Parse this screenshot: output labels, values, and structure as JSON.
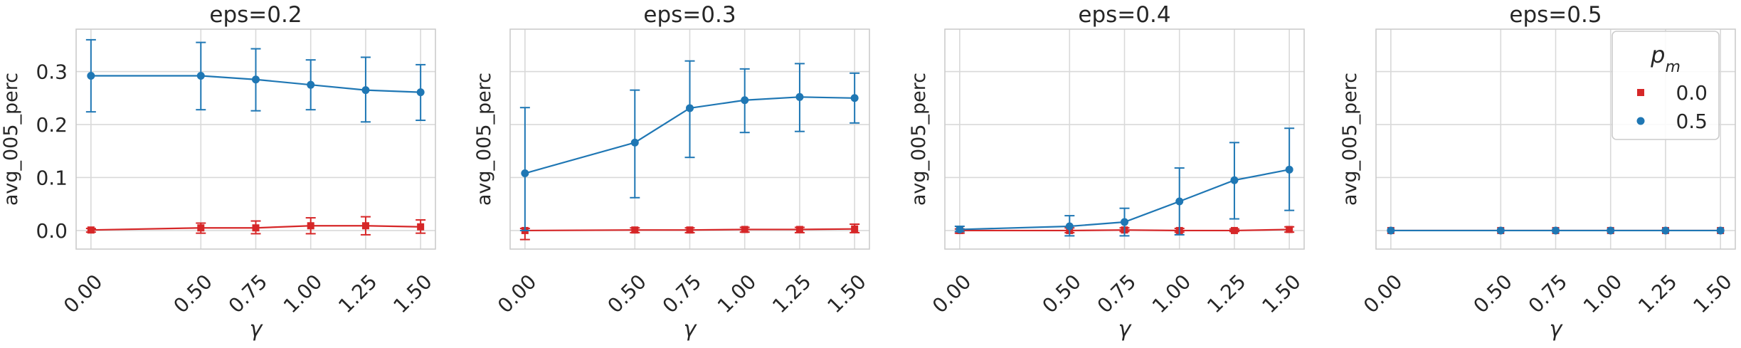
{
  "chart_data": [
    {
      "type": "line",
      "title": "eps=0.2",
      "xlabel": "γ",
      "ylabel": "avg_005_perc",
      "x": [
        0.0,
        0.5,
        0.75,
        1.0,
        1.25,
        1.5
      ],
      "xtick_labels": [
        "0.00",
        "0.50",
        "0.75",
        "1.00",
        "1.25",
        "1.50"
      ],
      "ylim": [
        -0.035,
        0.38
      ],
      "yticks": [
        0.0,
        0.1,
        0.2,
        0.3
      ],
      "ytick_labels": [
        "0.0",
        "0.1",
        "0.2",
        "0.3"
      ],
      "grid": true,
      "series": [
        {
          "name": "0.0",
          "marker": "square",
          "color": "#d62728",
          "values": [
            0.001,
            0.005,
            0.005,
            0.009,
            0.009,
            0.007
          ],
          "err_low": [
            -0.003,
            -0.005,
            -0.006,
            -0.006,
            -0.008,
            -0.005
          ],
          "err_high": [
            0.004,
            0.014,
            0.018,
            0.024,
            0.026,
            0.02
          ]
        },
        {
          "name": "0.5",
          "marker": "circle",
          "color": "#1f77b4",
          "values": [
            0.292,
            0.292,
            0.285,
            0.275,
            0.265,
            0.261
          ],
          "err_low": [
            0.224,
            0.228,
            0.226,
            0.228,
            0.205,
            0.208
          ],
          "err_high": [
            0.36,
            0.355,
            0.343,
            0.322,
            0.327,
            0.313
          ]
        }
      ]
    },
    {
      "type": "line",
      "title": "eps=0.3",
      "xlabel": "γ",
      "ylabel": "avg_005_perc",
      "x": [
        0.0,
        0.5,
        0.75,
        1.0,
        1.25,
        1.5
      ],
      "xtick_labels": [
        "0.00",
        "0.50",
        "0.75",
        "1.00",
        "1.25",
        "1.50"
      ],
      "ylim": [
        -0.035,
        0.38
      ],
      "yticks": [
        0.0,
        0.1,
        0.2,
        0.3
      ],
      "ytick_labels": [
        "",
        "",
        "",
        ""
      ],
      "grid": true,
      "series": [
        {
          "name": "0.0",
          "marker": "square",
          "color": "#d62728",
          "values": [
            0.0,
            0.001,
            0.001,
            0.002,
            0.002,
            0.003
          ],
          "err_low": [
            -0.017,
            -0.004,
            -0.004,
            -0.003,
            -0.004,
            -0.004
          ],
          "err_high": [
            0.004,
            0.005,
            0.005,
            0.006,
            0.006,
            0.012
          ]
        },
        {
          "name": "0.5",
          "marker": "circle",
          "color": "#1f77b4",
          "values": [
            0.108,
            0.166,
            0.231,
            0.246,
            0.252,
            0.25
          ],
          "err_low": [
            0.0,
            0.062,
            0.138,
            0.185,
            0.187,
            0.203
          ],
          "err_high": [
            0.232,
            0.265,
            0.32,
            0.305,
            0.315,
            0.297
          ]
        }
      ]
    },
    {
      "type": "line",
      "title": "eps=0.4",
      "xlabel": "γ",
      "ylabel": "avg_005_perc",
      "x": [
        0.0,
        0.5,
        0.75,
        1.0,
        1.25,
        1.5
      ],
      "xtick_labels": [
        "0.00",
        "0.50",
        "0.75",
        "1.00",
        "1.25",
        "1.50"
      ],
      "ylim": [
        -0.035,
        0.38
      ],
      "yticks": [
        0.0,
        0.1,
        0.2,
        0.3
      ],
      "ytick_labels": [
        "",
        "",
        "",
        ""
      ],
      "grid": true,
      "series": [
        {
          "name": "0.0",
          "marker": "square",
          "color": "#d62728",
          "values": [
            0.0,
            0.0,
            0.001,
            0.0,
            0.0,
            0.002
          ],
          "err_low": [
            -0.005,
            -0.004,
            -0.002,
            -0.003,
            -0.002,
            -0.003
          ],
          "err_high": [
            0.003,
            0.005,
            0.005,
            0.004,
            0.003,
            0.007
          ]
        },
        {
          "name": "0.5",
          "marker": "circle",
          "color": "#1f77b4",
          "values": [
            0.002,
            0.008,
            0.016,
            0.055,
            0.095,
            0.115
          ],
          "err_low": [
            -0.002,
            -0.01,
            -0.01,
            -0.008,
            0.022,
            0.038
          ],
          "err_high": [
            0.008,
            0.028,
            0.042,
            0.118,
            0.166,
            0.193
          ]
        }
      ]
    },
    {
      "type": "line",
      "title": "eps=0.5",
      "xlabel": "γ",
      "ylabel": "avg_005_perc",
      "x": [
        0.0,
        0.5,
        0.75,
        1.0,
        1.25,
        1.5
      ],
      "xtick_labels": [
        "0.00",
        "0.50",
        "0.75",
        "1.00",
        "1.25",
        "1.50"
      ],
      "ylim": [
        -0.035,
        0.38
      ],
      "yticks": [
        0.0,
        0.1,
        0.2,
        0.3
      ],
      "ytick_labels": [
        "",
        "",
        "",
        ""
      ],
      "grid": true,
      "legend": {
        "title": "p_m",
        "placement": "top-right"
      },
      "series": [
        {
          "name": "0.0",
          "marker": "square",
          "color": "#d62728",
          "values": [
            0.0,
            0.0,
            0.0,
            0.0,
            0.0,
            0.0
          ],
          "err_low": [
            0.0,
            0.0,
            0.0,
            0.0,
            0.0,
            0.0
          ],
          "err_high": [
            0.0,
            0.0,
            0.0,
            0.0,
            0.0,
            0.0
          ]
        },
        {
          "name": "0.5",
          "marker": "circle",
          "color": "#1f77b4",
          "values": [
            0.0,
            0.0,
            0.0,
            0.0,
            0.0,
            0.0
          ],
          "err_low": [
            0.0,
            0.0,
            0.0,
            0.0,
            0.0,
            0.0
          ],
          "err_high": [
            0.0,
            0.0,
            0.0,
            0.0,
            0.0,
            0.0
          ]
        }
      ]
    }
  ]
}
